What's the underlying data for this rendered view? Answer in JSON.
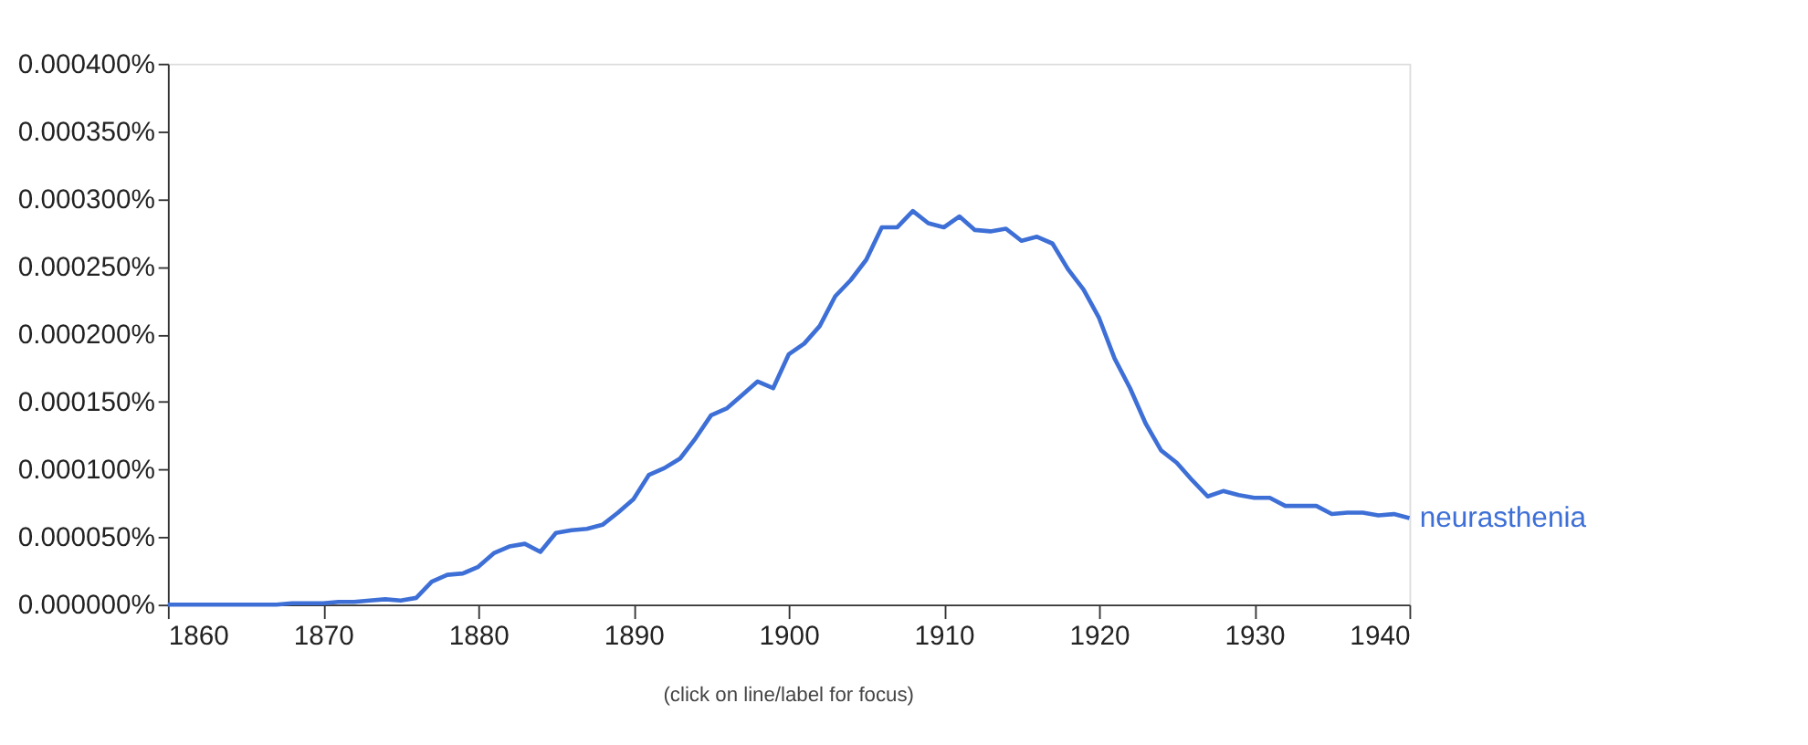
{
  "chart_data": {
    "type": "line",
    "x": [
      1860,
      1861,
      1862,
      1863,
      1864,
      1865,
      1866,
      1867,
      1868,
      1869,
      1870,
      1871,
      1872,
      1873,
      1874,
      1875,
      1876,
      1877,
      1878,
      1879,
      1880,
      1881,
      1882,
      1883,
      1884,
      1885,
      1886,
      1887,
      1888,
      1889,
      1890,
      1891,
      1892,
      1893,
      1894,
      1895,
      1896,
      1897,
      1898,
      1899,
      1900,
      1901,
      1902,
      1903,
      1904,
      1905,
      1906,
      1907,
      1908,
      1909,
      1910,
      1911,
      1912,
      1913,
      1914,
      1915,
      1916,
      1917,
      1918,
      1919,
      1920,
      1921,
      1922,
      1923,
      1924,
      1925,
      1926,
      1927,
      1928,
      1929,
      1930,
      1931,
      1932,
      1933,
      1934,
      1935,
      1936,
      1937,
      1938,
      1939,
      1940
    ],
    "series": [
      {
        "name": "neurasthenia",
        "color": "#3d6fd6",
        "values": [
          0,
          0,
          0,
          0,
          0,
          0,
          0,
          0,
          1e-06,
          1e-06,
          1e-06,
          2e-06,
          2e-06,
          3e-06,
          4e-06,
          3e-06,
          5e-06,
          1.7e-05,
          2.2e-05,
          2.3e-05,
          2.8e-05,
          3.8e-05,
          4.3e-05,
          4.5e-05,
          3.9e-05,
          5.3e-05,
          5.5e-05,
          5.6e-05,
          5.9e-05,
          6.8e-05,
          7.8e-05,
          9.6e-05,
          0.000101,
          0.000108,
          0.000123,
          0.00014,
          0.000145,
          0.000155,
          0.000165,
          0.00016,
          0.000185,
          0.000193,
          0.000206,
          0.000228,
          0.00024,
          0.000255,
          0.000279,
          0.000279,
          0.000291,
          0.000282,
          0.000279,
          0.000287,
          0.000277,
          0.000276,
          0.000278,
          0.000269,
          0.000272,
          0.000267,
          0.000248,
          0.000233,
          0.000212,
          0.000182,
          0.00016,
          0.000134,
          0.000114,
          0.000105,
          9.2e-05,
          8e-05,
          8.4e-05,
          8.1e-05,
          7.9e-05,
          7.9e-05,
          7.3e-05,
          7.3e-05,
          7.3e-05,
          6.7e-05,
          6.8e-05,
          6.8e-05,
          6.6e-05,
          6.7e-05,
          6.4e-05
        ]
      }
    ],
    "xlim": [
      1860,
      1940
    ],
    "xticks": [
      1860,
      1870,
      1880,
      1890,
      1900,
      1910,
      1920,
      1930,
      1940
    ],
    "ylim": [
      0,
      0.0004
    ],
    "yticks": [
      {
        "value": 0,
        "label": "0.000000%"
      },
      {
        "value": 5e-05,
        "label": "0.000050%"
      },
      {
        "value": 0.0001,
        "label": "0.000100%"
      },
      {
        "value": 0.00015,
        "label": "0.000150%"
      },
      {
        "value": 0.0002,
        "label": "0.000200%"
      },
      {
        "value": 0.00025,
        "label": "0.000250%"
      },
      {
        "value": 0.0003,
        "label": "0.000300%"
      },
      {
        "value": 0.00035,
        "label": "0.000350%"
      },
      {
        "value": 0.0004,
        "label": "0.000400%"
      }
    ],
    "annotations": [
      "(click on line/label for focus)"
    ],
    "grid": false,
    "legend": false
  }
}
